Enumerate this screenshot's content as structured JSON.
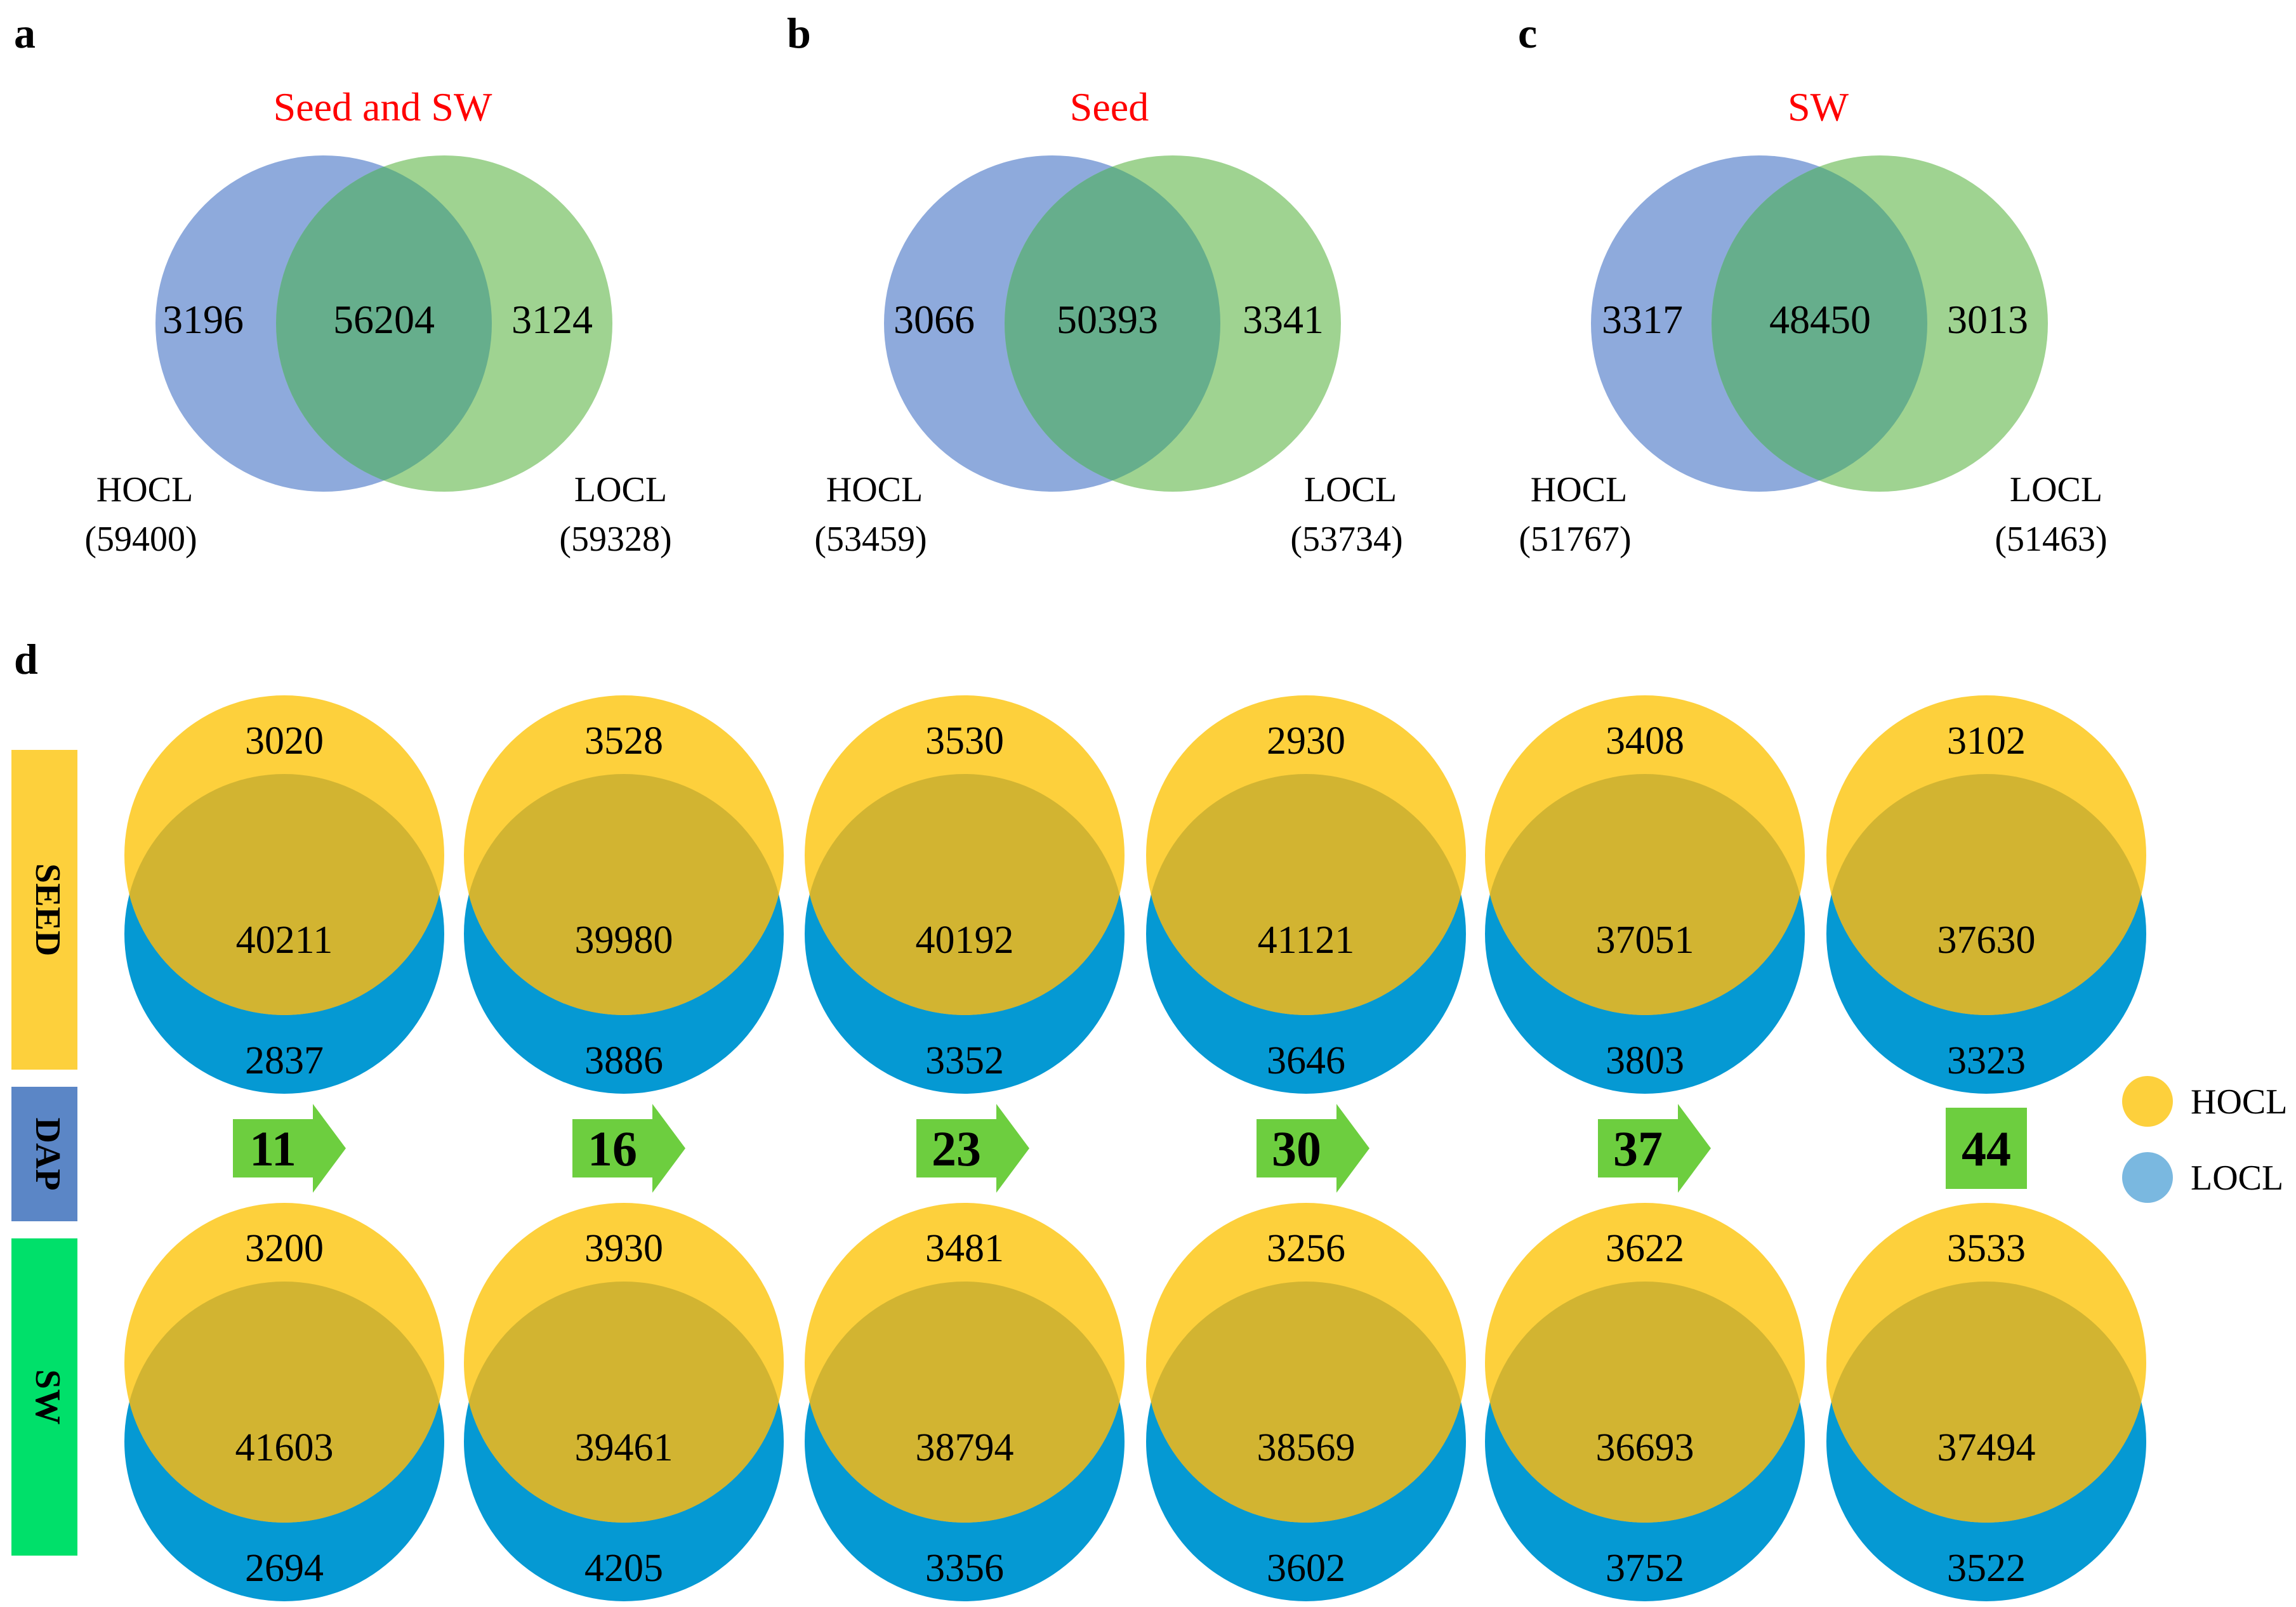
{
  "colors": {
    "hocl_blue": "#8eaadc",
    "locl_green": "#9fd391",
    "overlap_green": "#66ae8c",
    "title_red": "#ff0000",
    "seed_yellow": "#fdd03c",
    "seed_blue": "#0599d3",
    "seed_overlap": "#d2b431",
    "arrow_green": "#6dce3f",
    "sidebar_seed": "#fdd03c",
    "sidebar_dap": "#5b86c6",
    "sidebar_sw": "#00e06a",
    "legend_hocl": "#fdd03c",
    "legend_locl": "#7ab8e0"
  },
  "panels_top": [
    {
      "letter": "a",
      "title": "Seed and SW",
      "left_only": "3196",
      "overlap": "56204",
      "right_only": "3124",
      "left_label": "HOCL",
      "left_total": "(59400)",
      "right_label": "LOCL",
      "right_total": "(59328)"
    },
    {
      "letter": "b",
      "title": "Seed",
      "left_only": "3066",
      "overlap": "50393",
      "right_only": "3341",
      "left_label": "HOCL",
      "left_total": "(53459)",
      "right_label": "LOCL",
      "right_total": "(53734)"
    },
    {
      "letter": "c",
      "title": "SW",
      "left_only": "3317",
      "overlap": "48450",
      "right_only": "3013",
      "left_label": "HOCL",
      "left_total": "(51767)",
      "right_label": "LOCL",
      "right_total": "(51463)"
    }
  ],
  "panel_d": {
    "letter": "d",
    "row_labels": {
      "seed": "SEED",
      "dap": "DAP",
      "sw": "SW"
    },
    "dap": [
      "11",
      "16",
      "23",
      "30",
      "37",
      "44"
    ],
    "seed": [
      {
        "hocl_only": "3020",
        "overlap": "40211",
        "locl_only": "2837"
      },
      {
        "hocl_only": "3528",
        "overlap": "39980",
        "locl_only": "3886"
      },
      {
        "hocl_only": "3530",
        "overlap": "40192",
        "locl_only": "3352"
      },
      {
        "hocl_only": "2930",
        "overlap": "41121",
        "locl_only": "3646"
      },
      {
        "hocl_only": "3408",
        "overlap": "37051",
        "locl_only": "3803"
      },
      {
        "hocl_only": "3102",
        "overlap": "37630",
        "locl_only": "3323"
      }
    ],
    "sw": [
      {
        "hocl_only": "3200",
        "overlap": "41603",
        "locl_only": "2694"
      },
      {
        "hocl_only": "3930",
        "overlap": "39461",
        "locl_only": "4205"
      },
      {
        "hocl_only": "3481",
        "overlap": "38794",
        "locl_only": "3356"
      },
      {
        "hocl_only": "3256",
        "overlap": "38569",
        "locl_only": "3602"
      },
      {
        "hocl_only": "3622",
        "overlap": "36693",
        "locl_only": "3752"
      },
      {
        "hocl_only": "3533",
        "overlap": "37494",
        "locl_only": "3522"
      }
    ],
    "legend": [
      {
        "label": "HOCL"
      },
      {
        "label": "LOCL"
      }
    ]
  }
}
